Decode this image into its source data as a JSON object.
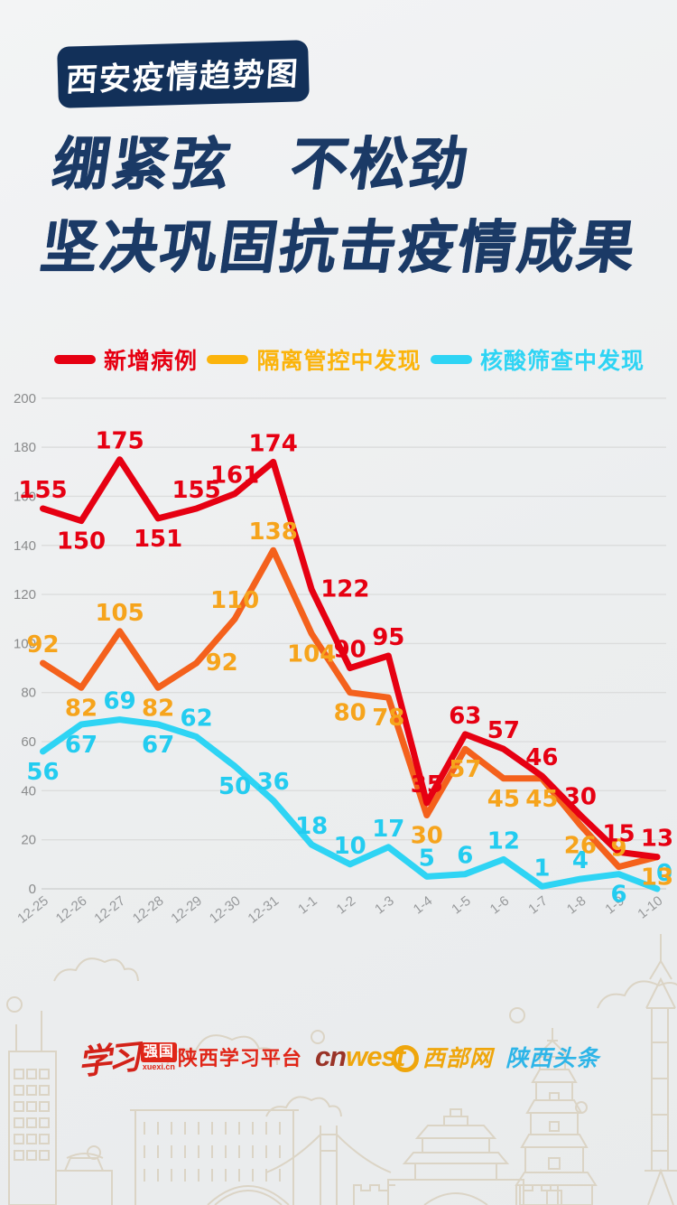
{
  "badge": {
    "label": "西安疫情趋势图"
  },
  "title": {
    "line1": "绷紧弦　不松劲",
    "line2": "坚决巩固抗击疫情成果"
  },
  "legend": [
    {
      "label": "新增病例",
      "color": "#e60012"
    },
    {
      "label": "隔离管控中发现",
      "color": "#fbb40c"
    },
    {
      "label": "核酸筛查中发现",
      "color": "#2ed4f4"
    }
  ],
  "chart_data": {
    "type": "line",
    "title": "西安疫情趋势图",
    "x": [
      "12-25",
      "12-26",
      "12-27",
      "12-28",
      "12-29",
      "12-30",
      "12-31",
      "1-1",
      "1-2",
      "1-3",
      "1-4",
      "1-5",
      "1-6",
      "1-7",
      "1-8",
      "1-9",
      "1-10"
    ],
    "xlabel": "",
    "ylabel": "",
    "ylim": [
      0,
      200
    ],
    "yticks": [
      0,
      20,
      40,
      60,
      80,
      100,
      120,
      140,
      160,
      180,
      200
    ],
    "grid": true,
    "legend_position": "top",
    "series": [
      {
        "name": "新增病例",
        "color": "#e60012",
        "label_color": "#e60012",
        "values": [
          155,
          150,
          175,
          151,
          155,
          161,
          174,
          122,
          90,
          95,
          35,
          63,
          57,
          46,
          30,
          15,
          13
        ],
        "label_pos": [
          "a",
          "b",
          "a",
          "b",
          "a",
          "a",
          "a",
          "r",
          "a",
          "a",
          "a",
          "a",
          "a",
          "a",
          "a",
          "a",
          "a"
        ]
      },
      {
        "name": "隔离管控中发现",
        "color": "#f4611c",
        "label_color": "#f6a41c",
        "values": [
          92,
          82,
          105,
          82,
          92,
          110,
          138,
          104,
          80,
          78,
          30,
          57,
          45,
          45,
          26,
          9,
          13
        ],
        "label_pos": [
          "a",
          "b",
          "a",
          "b",
          "r",
          "a",
          "a",
          "b",
          "b",
          "b",
          "b",
          "b",
          "b",
          "b",
          "b",
          "a",
          "b"
        ]
      },
      {
        "name": "核酸筛查中发现",
        "color": "#2ed4f4",
        "label_color": "#23ccf0",
        "values": [
          56,
          67,
          69,
          67,
          62,
          50,
          36,
          18,
          10,
          17,
          5,
          6,
          12,
          1,
          4,
          6,
          0
        ],
        "label_pos": [
          "b",
          "b",
          "a",
          "b",
          "a",
          "b",
          "a",
          "a",
          "a",
          "a",
          "a",
          "a",
          "a",
          "a",
          "a",
          "b",
          "ra"
        ]
      }
    ]
  },
  "footer": {
    "xuexi_script": "学习",
    "xuexi_box": "强国",
    "xuexi_url": "xuexi.cn",
    "xuexi_platform": "陕西学习平台",
    "cnwest_cn": "cn",
    "cnwest_west": "west",
    "cnwest_site": "西部网",
    "toutiao": "陕西头条"
  }
}
